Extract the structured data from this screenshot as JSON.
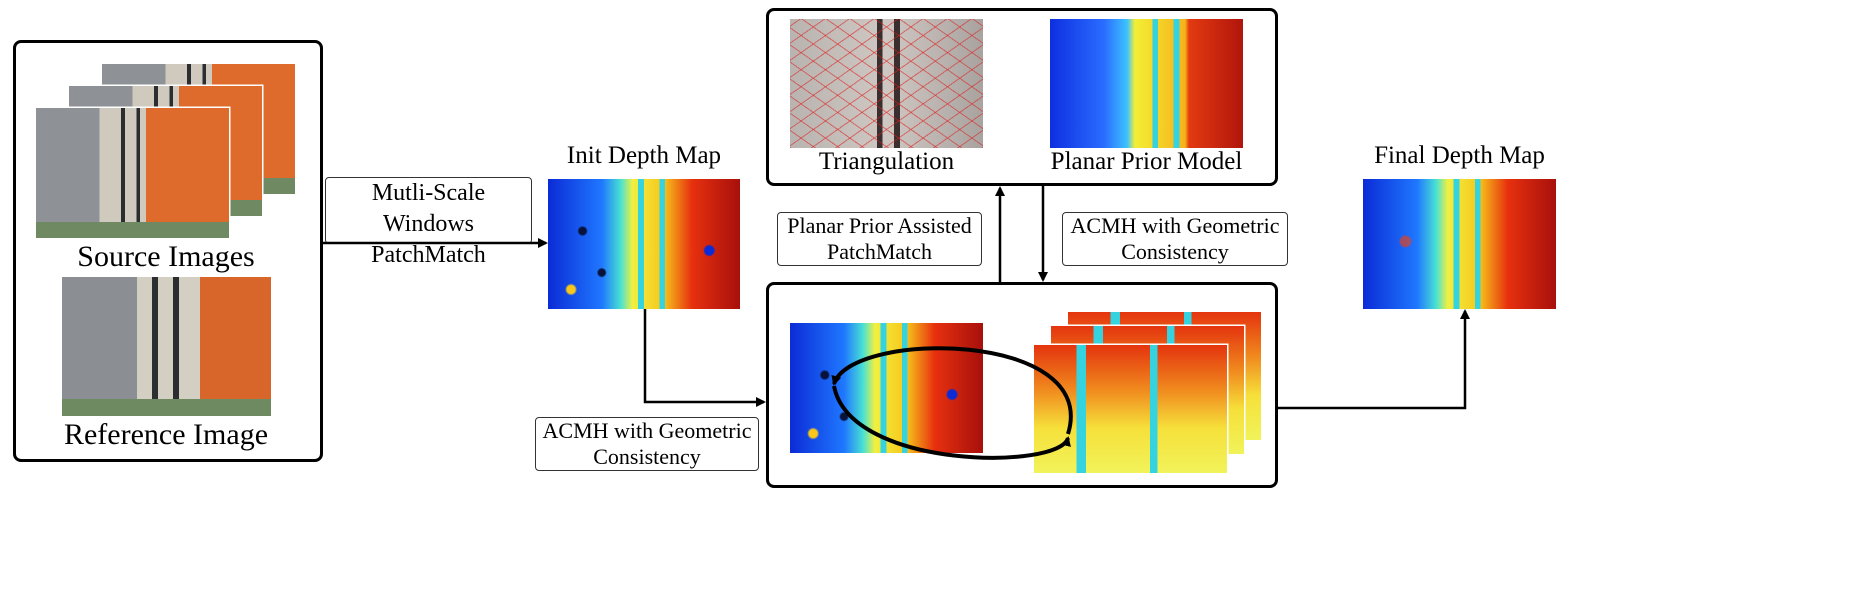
{
  "captions": {
    "source_images": "Source Images",
    "reference_image": "Reference Image",
    "init_depth_map": "Init Depth Map",
    "triangulation": "Triangulation",
    "planar_prior_model": "Planar Prior Model",
    "final_depth_map": "Final Depth Map"
  },
  "edge_labels": {
    "multiscale_line1": "Mutli-Scale Windows",
    "multiscale_line2": "PatchMatch",
    "planar_assisted_line1": "Planar Prior Assisted",
    "planar_assisted_line2": "PatchMatch",
    "acmh_top_line1": "ACMH with Geometric",
    "acmh_top_line2": "Consistency",
    "acmh_bottom_line1": "ACMH with Geometric",
    "acmh_bottom_line2": "Consistency"
  },
  "icons": {
    "arrow": "arrow-icon"
  }
}
